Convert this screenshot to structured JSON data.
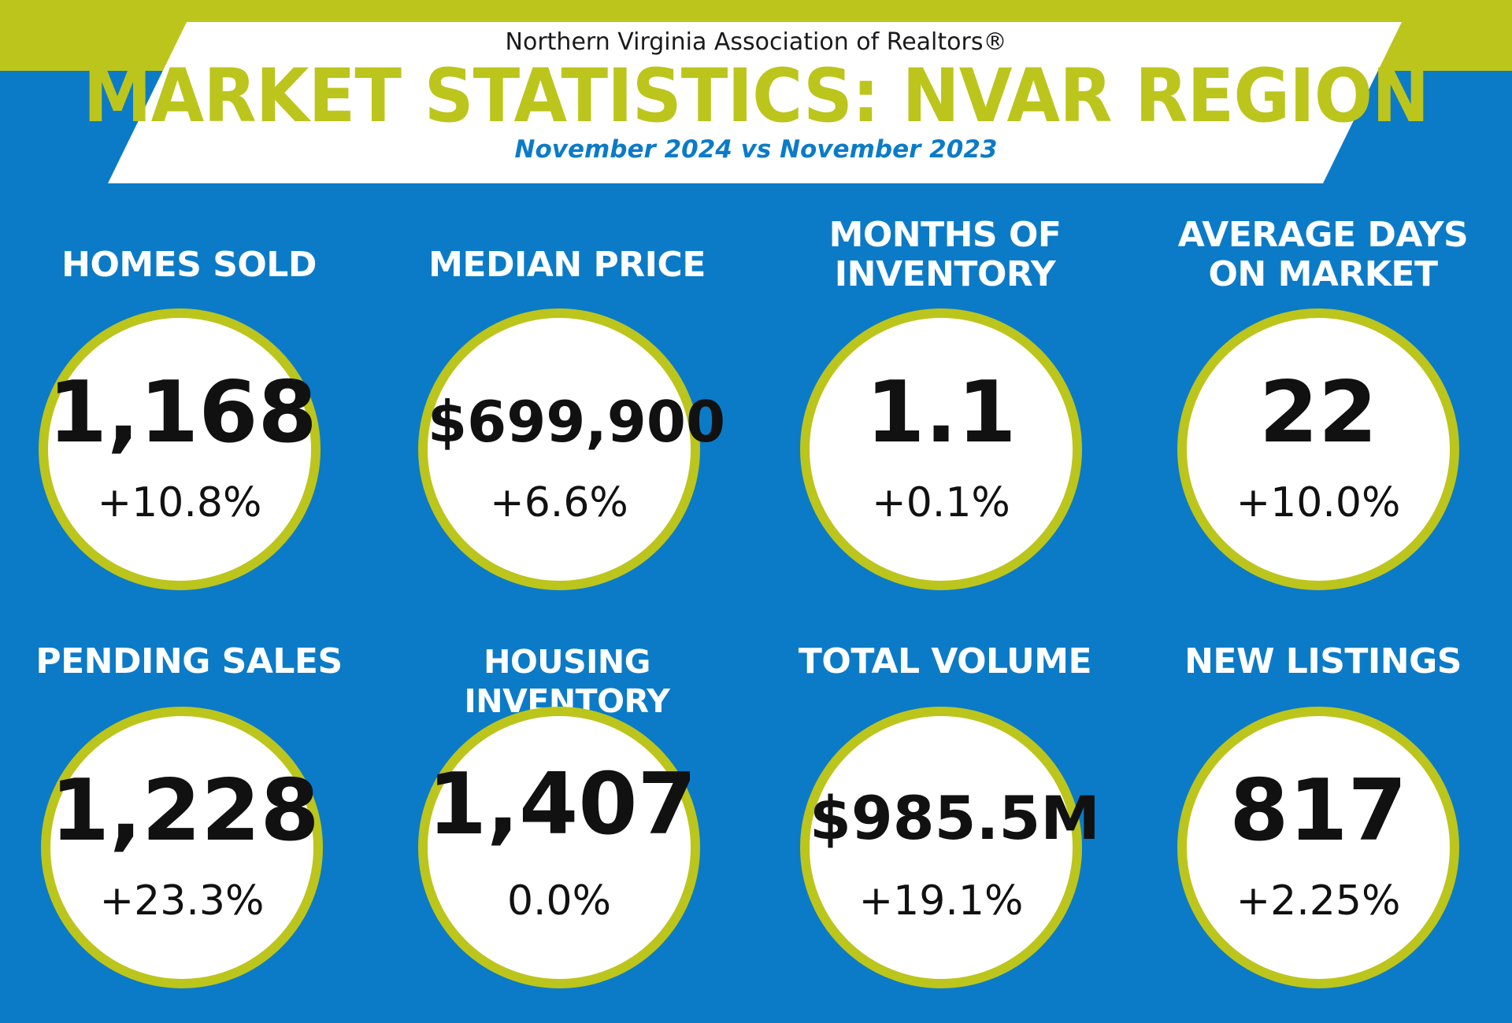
{
  "header": {
    "organization": "Northern Virginia Association of Realtors®",
    "title": "MARKET STATISTICS: NVAR REGION",
    "subtitle": "November 2024 vs November 2023"
  },
  "colors": {
    "background": "#0b7bc8",
    "accent": "#bcc51c",
    "circle_fill": "#ffffff",
    "text_dark": "#111111"
  },
  "stats": [
    {
      "label_line1": "HOMES SOLD",
      "label_line2": "",
      "value": "1,168",
      "change": "+10.8%"
    },
    {
      "label_line1": "MEDIAN PRICE",
      "label_line2": "",
      "value": "$699,900",
      "change": "+6.6%"
    },
    {
      "label_line1": "MONTHS OF",
      "label_line2": "INVENTORY",
      "value": "1.1",
      "change": "+0.1%"
    },
    {
      "label_line1": "AVERAGE DAYS",
      "label_line2": "ON MARKET",
      "value": "22",
      "change": "+10.0%"
    },
    {
      "label_line1": "PENDING SALES",
      "label_line2": "",
      "value": "1,228",
      "change": "+23.3%"
    },
    {
      "label_line1": "HOUSING INVENTORY",
      "label_line2": "",
      "value": "1,407",
      "change": "0.0%"
    },
    {
      "label_line1": "TOTAL VOLUME",
      "label_line2": "",
      "value": "$985.5M",
      "change": "+19.1%"
    },
    {
      "label_line1": "NEW LISTINGS",
      "label_line2": "",
      "value": "817",
      "change": "+2.25%"
    }
  ]
}
